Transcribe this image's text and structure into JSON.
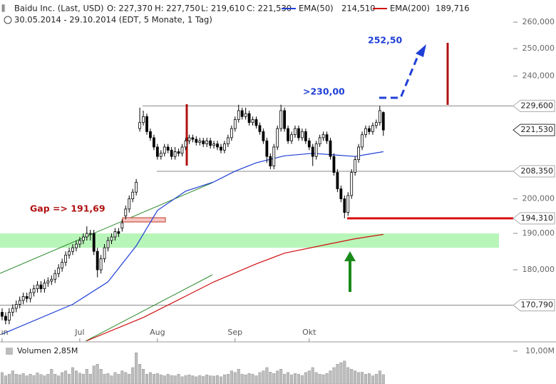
{
  "header": {
    "title": "Baidu Inc. (Last, USD)",
    "open": "O: 227,370",
    "high": "H: 227,750",
    "low": "L: 219,610",
    "close": "C: 221,530",
    "period": "30.05.2014 - 29.10.2014 (EDT, 5 Monate, 1 Tag)"
  },
  "chart_data": {
    "type": "candlestick",
    "log_scale": true,
    "xlim": [
      -0.6,
      144.8
    ],
    "ylim": [
      161.9,
      268.7
    ],
    "xticks": [
      {
        "value": 0,
        "label": "Jun"
      },
      {
        "value": 22,
        "label": "Jul"
      },
      {
        "value": 44,
        "label": "Aug"
      },
      {
        "value": 66,
        "label": "Sep"
      },
      {
        "value": 87,
        "label": "Okt"
      }
    ],
    "yticks": [
      {
        "value": 180,
        "label": "180,000"
      },
      {
        "value": 190,
        "label": "190,000"
      },
      {
        "value": 200,
        "label": "200,000"
      },
      {
        "value": 240,
        "label": "240,000"
      },
      {
        "value": 250,
        "label": "250,000"
      },
      {
        "value": 260,
        "label": "260,000"
      }
    ],
    "candles": [
      [
        169,
        170,
        167,
        168
      ],
      [
        168,
        169,
        166,
        167
      ],
      [
        167,
        170,
        166,
        169
      ],
      [
        169,
        171,
        168,
        170
      ],
      [
        170,
        172,
        169,
        171
      ],
      [
        171,
        173,
        170,
        172
      ],
      [
        172,
        174,
        171,
        173
      ],
      [
        173,
        174,
        171.5,
        172.5
      ],
      [
        172.5,
        175,
        171.5,
        174
      ],
      [
        174,
        176,
        173,
        175
      ],
      [
        175,
        177,
        174,
        176
      ],
      [
        176,
        177,
        174,
        175
      ],
      [
        175,
        177.5,
        174,
        176.5
      ],
      [
        176.5,
        178,
        175.5,
        177
      ],
      [
        177,
        178.5,
        176,
        177.5
      ],
      [
        177.5,
        180,
        176.5,
        179
      ],
      [
        179,
        181.5,
        178,
        180.5
      ],
      [
        180.5,
        183,
        179.5,
        182
      ],
      [
        182,
        185,
        181,
        184
      ],
      [
        184,
        186,
        183,
        185
      ],
      [
        185,
        187,
        184,
        186
      ],
      [
        186,
        188,
        185,
        187
      ],
      [
        187,
        189,
        186,
        188
      ],
      [
        188,
        190,
        187,
        189
      ],
      [
        189,
        192,
        188,
        190
      ],
      [
        190,
        191,
        188,
        190
      ],
      [
        190,
        191,
        184,
        185
      ],
      [
        185,
        186,
        178,
        180
      ],
      [
        180,
        184,
        179,
        183
      ],
      [
        183,
        187,
        182,
        186
      ],
      [
        186,
        189,
        185,
        188
      ],
      [
        188,
        190,
        187,
        189
      ],
      [
        189,
        191.5,
        188,
        190.5
      ],
      [
        190.5,
        191.5,
        189,
        190
      ],
      [
        191.5,
        194,
        190.5,
        193
      ],
      [
        195,
        198,
        194,
        197
      ],
      [
        197,
        201,
        196,
        200
      ],
      [
        200,
        203,
        199,
        202
      ],
      [
        202,
        206,
        201,
        205
      ],
      [
        222,
        229,
        221,
        224
      ],
      [
        224,
        228,
        223,
        226
      ],
      [
        226,
        227,
        220,
        221
      ],
      [
        221,
        222,
        218,
        219
      ],
      [
        219,
        220,
        215,
        216
      ],
      [
        216,
        217,
        212,
        213
      ],
      [
        213,
        215,
        212,
        214
      ],
      [
        214,
        217,
        213,
        216
      ],
      [
        216,
        217,
        214,
        215
      ],
      [
        215,
        216,
        212,
        213
      ],
      [
        213,
        216,
        212,
        214.5
      ],
      [
        214.5,
        215.5,
        213,
        214
      ],
      [
        214,
        217,
        213,
        216
      ],
      [
        216,
        219,
        215,
        218
      ],
      [
        218,
        220,
        217,
        219
      ],
      [
        219,
        220,
        217.5,
        218.5
      ],
      [
        218.5,
        219.5,
        216.5,
        217.5
      ],
      [
        217.5,
        219,
        216.5,
        218
      ],
      [
        218,
        219,
        216,
        217
      ],
      [
        217,
        219,
        216,
        218
      ],
      [
        218,
        219,
        215.5,
        216.5
      ],
      [
        216.5,
        218,
        215.5,
        217
      ],
      [
        217,
        218,
        215,
        216
      ],
      [
        216,
        217,
        214,
        215
      ],
      [
        215,
        218,
        214,
        217
      ],
      [
        217,
        220,
        216,
        219
      ],
      [
        219,
        223,
        218,
        222
      ],
      [
        222,
        226,
        221,
        225
      ],
      [
        225,
        230,
        224,
        228
      ],
      [
        228,
        229,
        225,
        226
      ],
      [
        226,
        229,
        225,
        227
      ],
      [
        227,
        228,
        223,
        224
      ],
      [
        224,
        226,
        223,
        225
      ],
      [
        225,
        226,
        222,
        223
      ],
      [
        223,
        224,
        220,
        221
      ],
      [
        221,
        222,
        217,
        218
      ],
      [
        218,
        219,
        211,
        213
      ],
      [
        213,
        214,
        209,
        210
      ],
      [
        210,
        217,
        209,
        216
      ],
      [
        216,
        223,
        215,
        222
      ],
      [
        222,
        230,
        221,
        228
      ],
      [
        228,
        229,
        221,
        222
      ],
      [
        222,
        223,
        217,
        218
      ],
      [
        218,
        221,
        217,
        220
      ],
      [
        220,
        223,
        219,
        222
      ],
      [
        222,
        223,
        218,
        219
      ],
      [
        219,
        222,
        218,
        221
      ],
      [
        221,
        222,
        217,
        218
      ],
      [
        218,
        219,
        215,
        216
      ],
      [
        216,
        217,
        210,
        213
      ],
      [
        213,
        218,
        212,
        217
      ],
      [
        217,
        220,
        216,
        219
      ],
      [
        219,
        221,
        218,
        220
      ],
      [
        220,
        221,
        217,
        218
      ],
      [
        218,
        219,
        212,
        213
      ],
      [
        213,
        214,
        207,
        208
      ],
      [
        208,
        209,
        202,
        203
      ],
      [
        203,
        204,
        199,
        200
      ],
      [
        200,
        201,
        194.31,
        196
      ],
      [
        196,
        202,
        195,
        201
      ],
      [
        201,
        209,
        200,
        208
      ],
      [
        208,
        213,
        207,
        212
      ],
      [
        212,
        217,
        211,
        216
      ],
      [
        216,
        221,
        215,
        220
      ],
      [
        220,
        223,
        219,
        222
      ],
      [
        222,
        223,
        220,
        221
      ],
      [
        221,
        224,
        220,
        223
      ],
      [
        223,
        225,
        222,
        224
      ],
      [
        224,
        229.6,
        223,
        228
      ],
      [
        227.37,
        227.75,
        219.61,
        221.53
      ]
    ],
    "series": [
      {
        "name": "EMA(50)",
        "value_label": "214,510",
        "color": "#1f3fd6",
        "x": [
          0,
          20,
          30,
          38,
          44,
          52,
          60,
          66,
          72,
          80,
          88,
          94,
          100,
          108
        ],
        "values": [
          163.6,
          171,
          176.8,
          186.5,
          196.6,
          202.3,
          205.1,
          208.4,
          211,
          213.2,
          214,
          213.5,
          213,
          214.51
        ]
      },
      {
        "name": "EMA(200)",
        "value_label": "189,716",
        "color": "#d01010",
        "x": [
          24,
          40,
          52,
          60,
          72,
          80,
          92,
          100,
          108
        ],
        "values": [
          162,
          167.7,
          173.1,
          176.8,
          181.6,
          184.5,
          186.9,
          188.5,
          189.716
        ]
      }
    ],
    "levels": [
      {
        "value": 229.6,
        "label": "229,600"
      },
      {
        "value": 221.53,
        "label": "221,530"
      },
      {
        "value": 208.35,
        "label": "208,350"
      },
      {
        "value": 194.31,
        "label": "194,310"
      },
      {
        "value": 170.79,
        "label": "170,790"
      }
    ],
    "support_band": [
      186,
      190
    ],
    "annotations": {
      "gap": "Gap  => 191,69",
      "breakout": ">230,00",
      "target": "252,50"
    },
    "volume": {
      "legend_text": "Volumen 2,85M",
      "ylim": [
        0,
        11.7
      ],
      "yticks": [
        {
          "value": 10,
          "label": "10,00M"
        }
      ],
      "color": "#bdbdbd",
      "values": [
        3.5,
        2.5,
        3,
        4,
        3,
        2.8,
        3.2,
        2.5,
        3,
        2.6,
        3.4,
        2.9,
        2.5,
        3,
        4.5,
        3,
        2.5,
        3.5,
        4,
        3,
        5,
        4,
        3.3,
        3,
        4.5,
        3,
        5.5,
        6,
        4.5,
        3,
        3.2,
        2.5,
        3.5,
        3,
        4,
        3.5,
        3,
        5,
        9.5,
        6,
        4.5,
        3,
        3.5,
        3,
        3.2,
        2.8,
        2.5,
        3,
        2.6,
        2.5,
        3,
        2.2,
        2.6,
        2.8,
        2.5,
        2.2,
        2.6,
        2.3,
        2.8,
        2.5,
        2.4,
        2.6,
        2.2,
        2.8,
        3,
        4,
        3.5,
        4.5,
        3,
        2.8,
        3.2,
        3,
        2.5,
        3.5,
        4,
        5,
        3.6,
        3.2,
        4,
        4.5,
        3,
        3.5,
        2.8,
        3.2,
        3,
        2.6,
        3.5,
        4,
        5,
        3.5,
        3,
        2.8,
        3.2,
        4,
        5,
        6,
        6.5,
        7,
        5,
        4.5,
        4,
        3.5,
        3.6,
        3,
        3.2,
        2.5,
        3,
        4,
        2.85
      ]
    }
  }
}
